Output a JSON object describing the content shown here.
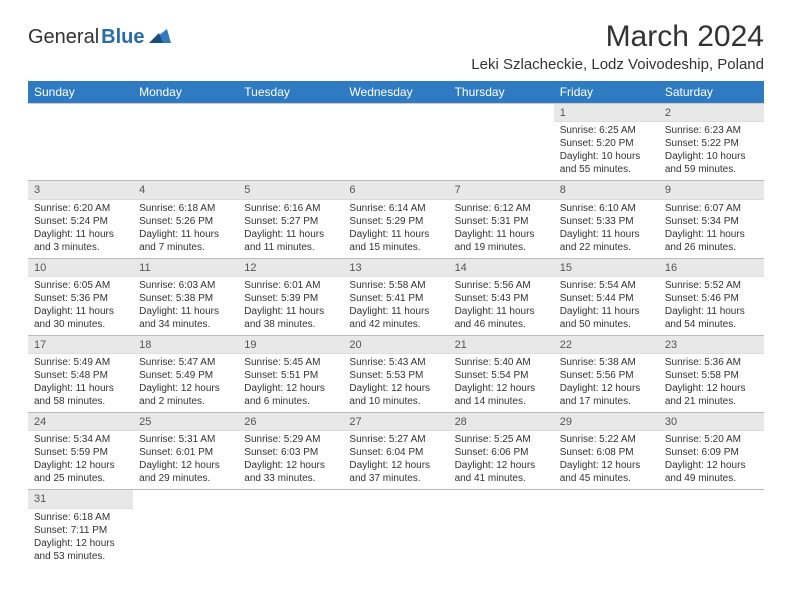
{
  "logo": {
    "part1": "General",
    "part2": "Blue"
  },
  "title": "March 2024",
  "location": "Leki Szlacheckie, Lodz Voivodeship, Poland",
  "styling": {
    "header_bg": "#2e7bc1",
    "header_text": "#ffffff",
    "daynum_bg": "#e8e8e8",
    "row_border": "#bbbbbb",
    "body_text": "#333333",
    "font_family": "Arial",
    "month_fontsize": 30,
    "location_fontsize": 15,
    "dayhead_fontsize": 12,
    "cell_fontsize": 10
  },
  "weekdays": [
    "Sunday",
    "Monday",
    "Tuesday",
    "Wednesday",
    "Thursday",
    "Friday",
    "Saturday"
  ],
  "days": {
    "1": {
      "sr": "6:25 AM",
      "ss": "5:20 PM",
      "dl": "10 hours and 55 minutes."
    },
    "2": {
      "sr": "6:23 AM",
      "ss": "5:22 PM",
      "dl": "10 hours and 59 minutes."
    },
    "3": {
      "sr": "6:20 AM",
      "ss": "5:24 PM",
      "dl": "11 hours and 3 minutes."
    },
    "4": {
      "sr": "6:18 AM",
      "ss": "5:26 PM",
      "dl": "11 hours and 7 minutes."
    },
    "5": {
      "sr": "6:16 AM",
      "ss": "5:27 PM",
      "dl": "11 hours and 11 minutes."
    },
    "6": {
      "sr": "6:14 AM",
      "ss": "5:29 PM",
      "dl": "11 hours and 15 minutes."
    },
    "7": {
      "sr": "6:12 AM",
      "ss": "5:31 PM",
      "dl": "11 hours and 19 minutes."
    },
    "8": {
      "sr": "6:10 AM",
      "ss": "5:33 PM",
      "dl": "11 hours and 22 minutes."
    },
    "9": {
      "sr": "6:07 AM",
      "ss": "5:34 PM",
      "dl": "11 hours and 26 minutes."
    },
    "10": {
      "sr": "6:05 AM",
      "ss": "5:36 PM",
      "dl": "11 hours and 30 minutes."
    },
    "11": {
      "sr": "6:03 AM",
      "ss": "5:38 PM",
      "dl": "11 hours and 34 minutes."
    },
    "12": {
      "sr": "6:01 AM",
      "ss": "5:39 PM",
      "dl": "11 hours and 38 minutes."
    },
    "13": {
      "sr": "5:58 AM",
      "ss": "5:41 PM",
      "dl": "11 hours and 42 minutes."
    },
    "14": {
      "sr": "5:56 AM",
      "ss": "5:43 PM",
      "dl": "11 hours and 46 minutes."
    },
    "15": {
      "sr": "5:54 AM",
      "ss": "5:44 PM",
      "dl": "11 hours and 50 minutes."
    },
    "16": {
      "sr": "5:52 AM",
      "ss": "5:46 PM",
      "dl": "11 hours and 54 minutes."
    },
    "17": {
      "sr": "5:49 AM",
      "ss": "5:48 PM",
      "dl": "11 hours and 58 minutes."
    },
    "18": {
      "sr": "5:47 AM",
      "ss": "5:49 PM",
      "dl": "12 hours and 2 minutes."
    },
    "19": {
      "sr": "5:45 AM",
      "ss": "5:51 PM",
      "dl": "12 hours and 6 minutes."
    },
    "20": {
      "sr": "5:43 AM",
      "ss": "5:53 PM",
      "dl": "12 hours and 10 minutes."
    },
    "21": {
      "sr": "5:40 AM",
      "ss": "5:54 PM",
      "dl": "12 hours and 14 minutes."
    },
    "22": {
      "sr": "5:38 AM",
      "ss": "5:56 PM",
      "dl": "12 hours and 17 minutes."
    },
    "23": {
      "sr": "5:36 AM",
      "ss": "5:58 PM",
      "dl": "12 hours and 21 minutes."
    },
    "24": {
      "sr": "5:34 AM",
      "ss": "5:59 PM",
      "dl": "12 hours and 25 minutes."
    },
    "25": {
      "sr": "5:31 AM",
      "ss": "6:01 PM",
      "dl": "12 hours and 29 minutes."
    },
    "26": {
      "sr": "5:29 AM",
      "ss": "6:03 PM",
      "dl": "12 hours and 33 minutes."
    },
    "27": {
      "sr": "5:27 AM",
      "ss": "6:04 PM",
      "dl": "12 hours and 37 minutes."
    },
    "28": {
      "sr": "5:25 AM",
      "ss": "6:06 PM",
      "dl": "12 hours and 41 minutes."
    },
    "29": {
      "sr": "5:22 AM",
      "ss": "6:08 PM",
      "dl": "12 hours and 45 minutes."
    },
    "30": {
      "sr": "5:20 AM",
      "ss": "6:09 PM",
      "dl": "12 hours and 49 minutes."
    },
    "31": {
      "sr": "6:18 AM",
      "ss": "7:11 PM",
      "dl": "12 hours and 53 minutes."
    }
  },
  "layout": {
    "first_weekday_index": 5,
    "num_days": 31,
    "labels": {
      "sunrise": "Sunrise:",
      "sunset": "Sunset:",
      "daylight": "Daylight:"
    }
  }
}
